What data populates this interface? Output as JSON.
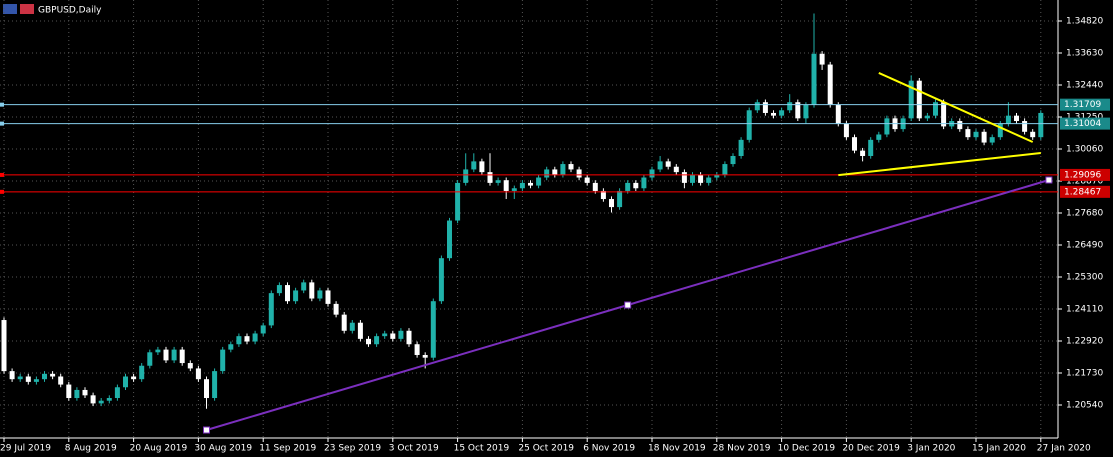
{
  "chart_data": {
    "type": "candlestick",
    "title": "GBPUSD,Daily",
    "categories": [
      "29 Jul 2019",
      null,
      null,
      null,
      null,
      null,
      null,
      null,
      "8 Aug 2019",
      null,
      null,
      null,
      null,
      null,
      null,
      null,
      "20 Aug 2019",
      null,
      null,
      null,
      null,
      null,
      null,
      null,
      "30 Aug 2019",
      null,
      null,
      null,
      null,
      null,
      null,
      null,
      "11 Sep 2019",
      null,
      null,
      null,
      null,
      null,
      null,
      null,
      "23 Sep 2019",
      null,
      null,
      null,
      null,
      null,
      null,
      null,
      "3 Oct 2019",
      null,
      null,
      null,
      null,
      null,
      null,
      null,
      "15 Oct 2019",
      null,
      null,
      null,
      null,
      null,
      null,
      null,
      "25 Oct 2019",
      null,
      null,
      null,
      null,
      null,
      null,
      null,
      "6 Nov 2019",
      null,
      null,
      null,
      null,
      null,
      null,
      null,
      "18 Nov 2019",
      null,
      null,
      null,
      null,
      null,
      null,
      null,
      "28 Nov 2019",
      null,
      null,
      null,
      null,
      null,
      null,
      null,
      "10 Dec 2019",
      null,
      null,
      null,
      null,
      null,
      null,
      null,
      "20 Dec 2019",
      null,
      null,
      null,
      null,
      null,
      null,
      null,
      "3 Jan 2020",
      null,
      null,
      null,
      null,
      null,
      null,
      null,
      "15 Jan 2020",
      null,
      null,
      null,
      null,
      null,
      null,
      null,
      "27 Jan 2020"
    ],
    "open": [
      1.237,
      1.218,
      1.215,
      1.216,
      1.214,
      1.215,
      1.217,
      1.216,
      1.213,
      1.208,
      1.211,
      1.209,
      1.206,
      1.207,
      1.208,
      1.212,
      1.216,
      1.215,
      1.22,
      1.225,
      1.226,
      1.222,
      1.226,
      1.221,
      1.219,
      1.215,
      1.208,
      1.218,
      1.226,
      1.228,
      1.231,
      1.229,
      1.232,
      1.235,
      1.247,
      1.25,
      1.244,
      1.248,
      1.251,
      1.245,
      1.248,
      1.243,
      1.239,
      1.233,
      1.236,
      1.23,
      1.228,
      1.231,
      1.232,
      1.23,
      1.233,
      1.228,
      1.224,
      1.223,
      1.244,
      1.26,
      1.274,
      1.288,
      1.293,
      1.296,
      1.292,
      1.288,
      1.289,
      1.285,
      1.286,
      1.288,
      1.287,
      1.29,
      1.293,
      1.291,
      1.295,
      1.293,
      1.29,
      1.288,
      1.285,
      1.282,
      1.279,
      1.285,
      1.288,
      1.286,
      1.29,
      1.293,
      1.296,
      1.294,
      1.292,
      1.288,
      1.291,
      1.288,
      1.29,
      1.291,
      1.295,
      1.298,
      1.304,
      1.315,
      1.318,
      1.314,
      1.313,
      1.315,
      1.318,
      1.312,
      1.317,
      1.336,
      1.332,
      1.317,
      1.31,
      1.305,
      1.3,
      1.298,
      1.304,
      1.306,
      1.312,
      1.308,
      1.312,
      1.326,
      1.312,
      1.313,
      1.318,
      1.309,
      1.311,
      1.308,
      1.305,
      1.307,
      1.303,
      1.305,
      1.31,
      1.313,
      1.311,
      1.307,
      1.305
    ],
    "high": [
      1.238,
      1.219,
      1.217,
      1.217,
      1.216,
      1.218,
      1.218,
      1.217,
      1.214,
      1.212,
      1.212,
      1.21,
      1.208,
      1.209,
      1.213,
      1.217,
      1.217,
      1.221,
      1.226,
      1.227,
      1.227,
      1.227,
      1.227,
      1.222,
      1.22,
      1.216,
      1.219,
      1.227,
      1.229,
      1.232,
      1.232,
      1.233,
      1.236,
      1.248,
      1.251,
      1.251,
      1.249,
      1.252,
      1.252,
      1.249,
      1.249,
      1.244,
      1.24,
      1.237,
      1.237,
      1.231,
      1.232,
      1.233,
      1.233,
      1.234,
      1.234,
      1.229,
      1.225,
      1.245,
      1.261,
      1.275,
      1.289,
      1.299,
      1.299,
      1.297,
      1.299,
      1.29,
      1.29,
      1.287,
      1.289,
      1.289,
      1.291,
      1.294,
      1.294,
      1.296,
      1.296,
      1.294,
      1.291,
      1.289,
      1.286,
      1.283,
      1.286,
      1.289,
      1.289,
      1.291,
      1.294,
      1.298,
      1.297,
      1.295,
      1.293,
      1.292,
      1.292,
      1.291,
      1.292,
      1.296,
      1.299,
      1.305,
      1.316,
      1.319,
      1.319,
      1.315,
      1.316,
      1.321,
      1.319,
      1.318,
      1.351,
      1.337,
      1.333,
      1.318,
      1.311,
      1.306,
      1.301,
      1.305,
      1.307,
      1.313,
      1.313,
      1.313,
      1.328,
      1.327,
      1.314,
      1.319,
      1.319,
      1.312,
      1.312,
      1.309,
      1.308,
      1.308,
      1.306,
      1.311,
      1.318,
      1.314,
      1.312,
      1.308,
      1.315
    ],
    "low": [
      1.217,
      1.214,
      1.214,
      1.213,
      1.213,
      1.214,
      1.215,
      1.212,
      1.207,
      1.207,
      1.208,
      1.205,
      1.205,
      1.206,
      1.207,
      1.211,
      1.214,
      1.214,
      1.219,
      1.224,
      1.221,
      1.221,
      1.22,
      1.218,
      1.214,
      1.204,
      1.207,
      1.217,
      1.225,
      1.227,
      1.228,
      1.228,
      1.231,
      1.234,
      1.246,
      1.243,
      1.243,
      1.247,
      1.244,
      1.244,
      1.242,
      1.238,
      1.232,
      1.232,
      1.229,
      1.227,
      1.227,
      1.23,
      1.229,
      1.229,
      1.227,
      1.223,
      1.219,
      1.222,
      1.243,
      1.259,
      1.273,
      1.287,
      1.292,
      1.291,
      1.287,
      1.287,
      1.282,
      1.282,
      1.285,
      1.286,
      1.286,
      1.289,
      1.29,
      1.29,
      1.292,
      1.289,
      1.287,
      1.284,
      1.281,
      1.277,
      1.278,
      1.284,
      1.285,
      1.285,
      1.289,
      1.292,
      1.293,
      1.291,
      1.286,
      1.287,
      1.287,
      1.287,
      1.289,
      1.29,
      1.294,
      1.297,
      1.303,
      1.314,
      1.313,
      1.312,
      1.312,
      1.314,
      1.311,
      1.31,
      1.316,
      1.33,
      1.316,
      1.309,
      1.304,
      1.299,
      1.296,
      1.297,
      1.303,
      1.305,
      1.307,
      1.307,
      1.311,
      1.311,
      1.311,
      1.312,
      1.308,
      1.308,
      1.307,
      1.304,
      1.304,
      1.302,
      1.302,
      1.304,
      1.309,
      1.31,
      1.306,
      1.304,
      1.304
    ],
    "close": [
      1.218,
      1.215,
      1.216,
      1.214,
      1.215,
      1.217,
      1.216,
      1.213,
      1.208,
      1.211,
      1.209,
      1.206,
      1.207,
      1.208,
      1.212,
      1.216,
      1.215,
      1.22,
      1.225,
      1.226,
      1.222,
      1.226,
      1.221,
      1.219,
      1.215,
      1.208,
      1.218,
      1.226,
      1.228,
      1.231,
      1.229,
      1.232,
      1.235,
      1.247,
      1.25,
      1.244,
      1.248,
      1.251,
      1.245,
      1.248,
      1.243,
      1.239,
      1.233,
      1.236,
      1.23,
      1.228,
      1.231,
      1.232,
      1.23,
      1.233,
      1.228,
      1.224,
      1.223,
      1.244,
      1.26,
      1.274,
      1.288,
      1.293,
      1.296,
      1.292,
      1.288,
      1.289,
      1.285,
      1.286,
      1.288,
      1.287,
      1.29,
      1.293,
      1.291,
      1.295,
      1.293,
      1.29,
      1.288,
      1.285,
      1.282,
      1.279,
      1.285,
      1.288,
      1.286,
      1.29,
      1.293,
      1.296,
      1.294,
      1.292,
      1.288,
      1.291,
      1.288,
      1.29,
      1.291,
      1.295,
      1.298,
      1.304,
      1.315,
      1.318,
      1.314,
      1.313,
      1.315,
      1.318,
      1.312,
      1.317,
      1.336,
      1.332,
      1.317,
      1.31,
      1.305,
      1.3,
      1.298,
      1.304,
      1.306,
      1.312,
      1.308,
      1.312,
      1.326,
      1.312,
      1.313,
      1.318,
      1.309,
      1.311,
      1.308,
      1.305,
      1.307,
      1.303,
      1.305,
      1.31,
      1.313,
      1.311,
      1.307,
      1.305,
      1.314
    ],
    "up_color": "#20b2aa",
    "down_color": "#ffffff",
    "ylim": [
      1.19313,
      1.35601
    ],
    "yticks": [
      {
        "value": 1.3482,
        "label": "1.34820"
      },
      {
        "value": 1.3363,
        "label": "1.33630"
      },
      {
        "value": 1.3244,
        "label": "1.32440"
      },
      {
        "value": 1.3125,
        "label": "1.31250"
      },
      {
        "value": 1.3006,
        "label": "1.30060"
      },
      {
        "value": 1.2887,
        "label": "1.28870"
      },
      {
        "value": 1.2768,
        "label": "1.27680"
      },
      {
        "value": 1.2649,
        "label": "1.26490"
      },
      {
        "value": 1.253,
        "label": "1.25300"
      },
      {
        "value": 1.2411,
        "label": "1.24110"
      },
      {
        "value": 1.2292,
        "label": "1.22920"
      },
      {
        "value": 1.2173,
        "label": "1.21730"
      },
      {
        "value": 1.2054,
        "label": "1.20540"
      }
    ],
    "grid": true,
    "hlines": [
      {
        "value": 1.31709,
        "label": "1.31709",
        "color": "#87ceeb"
      },
      {
        "value": 1.31004,
        "label": "1.31004",
        "color": "#87ceeb"
      },
      {
        "value": 1.29096,
        "label": "1.29096",
        "color": "#ff0000"
      },
      {
        "value": 1.28467,
        "label": "1.28467",
        "color": "#ff0000"
      }
    ],
    "trendlines": [
      {
        "x": [
          25,
          129
        ],
        "y": [
          1.1961,
          1.28907
        ],
        "color": "#7b2fbe"
      },
      {
        "x": [
          108,
          127
        ],
        "y": [
          1.3289,
          1.3032
        ],
        "color": "#ffff00"
      },
      {
        "x": [
          103,
          128
        ],
        "y": [
          1.2909,
          1.2991
        ],
        "color": "#ffff00"
      }
    ]
  }
}
